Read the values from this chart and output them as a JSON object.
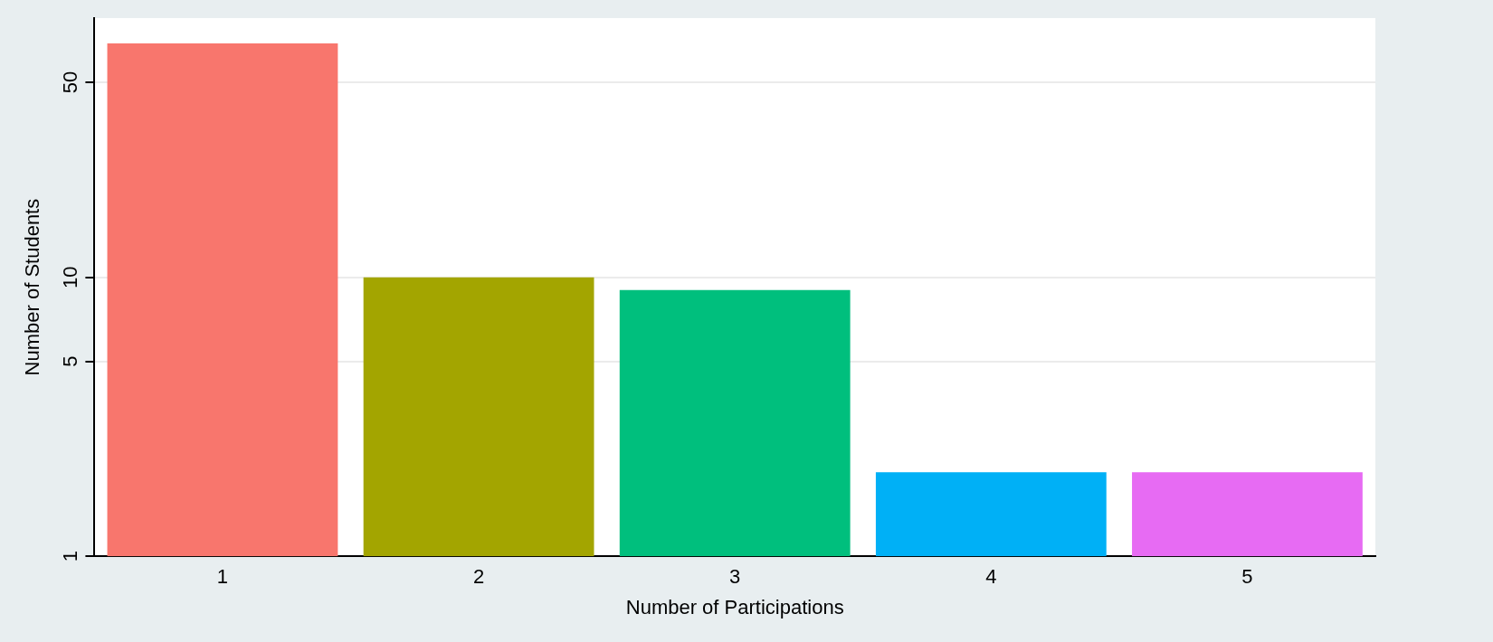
{
  "chart_data": {
    "type": "bar",
    "xlabel": "Number of Participations",
    "ylabel": "Number of Students",
    "categories": [
      "1",
      "2",
      "3",
      "4",
      "5"
    ],
    "values": [
      69,
      10,
      9,
      2,
      2
    ],
    "colors": [
      "#f8766d",
      "#a3a500",
      "#00bf7d",
      "#00b0f6",
      "#e76bf3"
    ],
    "log": true,
    "ylim": [
      1,
      85
    ],
    "yticks": [
      1,
      5,
      10,
      50
    ],
    "grid": "y",
    "legend": false
  }
}
